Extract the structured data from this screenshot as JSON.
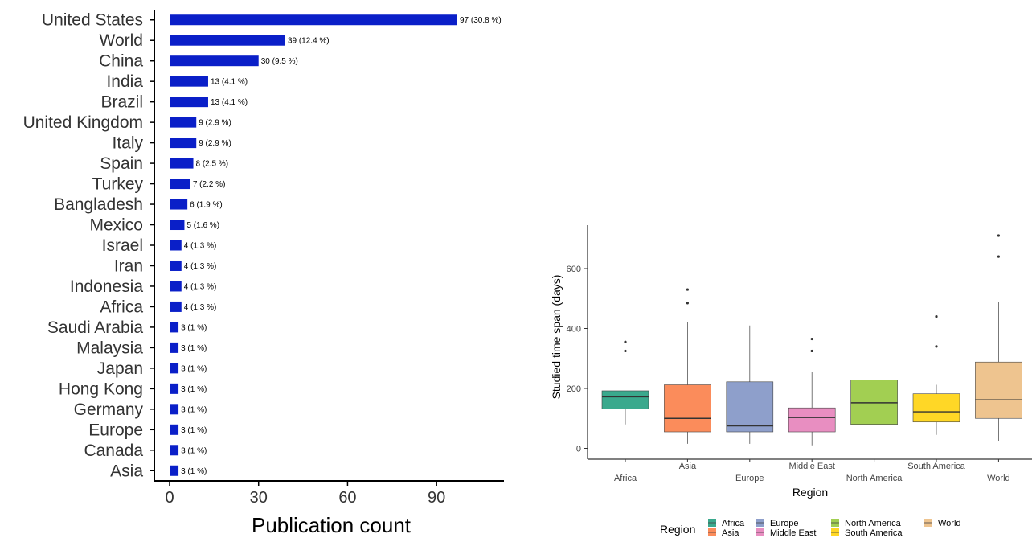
{
  "chart_data": [
    {
      "type": "bar",
      "orientation": "horizontal",
      "categories": [
        "United States",
        "World",
        "China",
        "India",
        "Brazil",
        "United Kingdom",
        "Italy",
        "Spain",
        "Turkey",
        "Bangladesh",
        "Mexico",
        "Israel",
        "Iran",
        "Indonesia",
        "Africa",
        "Saudi Arabia",
        "Malaysia",
        "Japan",
        "Hong Kong",
        "Germany",
        "Europe",
        "Canada",
        "Asia"
      ],
      "values": [
        97,
        39,
        30,
        13,
        13,
        9,
        9,
        8,
        7,
        6,
        5,
        4,
        4,
        4,
        4,
        3,
        3,
        3,
        3,
        3,
        3,
        3,
        3
      ],
      "data_labels": [
        "97 (30.8 %)",
        "39 (12.4 %)",
        "30 (9.5 %)",
        "13 (4.1 %)",
        "13 (4.1 %)",
        "9 (2.9 %)",
        "9 (2.9 %)",
        "8 (2.5 %)",
        "7 (2.2 %)",
        "6 (1.9 %)",
        "5 (1.6 %)",
        "4 (1.3 %)",
        "4 (1.3 %)",
        "4 (1.3 %)",
        "4 (1.3 %)",
        "3 (1 %)",
        "3 (1 %)",
        "3 (1 %)",
        "3 (1 %)",
        "3 (1 %)",
        "3 (1 %)",
        "3 (1 %)",
        "3 (1 %)"
      ],
      "xlabel": "Publication count",
      "xticks": [
        0,
        30,
        60,
        90
      ],
      "xlim": [
        0,
        113
      ],
      "bar_color": "#0a1fc8",
      "grid": false
    },
    {
      "type": "box",
      "categories": [
        "Africa",
        "Asia",
        "Europe",
        "Middle East",
        "North America",
        "South America",
        "World"
      ],
      "boxes": [
        {
          "name": "Africa",
          "whisker_low": 80,
          "q1": 132,
          "median": 172,
          "q3": 192,
          "whisker_high": 192,
          "outliers": [
            325,
            355
          ],
          "color": "#3aa98d"
        },
        {
          "name": "Asia",
          "whisker_low": 15,
          "q1": 55,
          "median": 100,
          "q3": 212,
          "whisker_high": 422,
          "outliers": [
            485,
            530
          ],
          "color": "#fb8c5b"
        },
        {
          "name": "Europe",
          "whisker_low": 15,
          "q1": 55,
          "median": 75,
          "q3": 222,
          "whisker_high": 410,
          "outliers": [],
          "color": "#8e9fcb"
        },
        {
          "name": "Middle East",
          "whisker_low": 10,
          "q1": 55,
          "median": 103,
          "q3": 135,
          "whisker_high": 255,
          "outliers": [
            325,
            365
          ],
          "color": "#e88ec1"
        },
        {
          "name": "North America",
          "whisker_low": 5,
          "q1": 80,
          "median": 152,
          "q3": 228,
          "whisker_high": 375,
          "outliers": [],
          "color": "#a2cf52"
        },
        {
          "name": "South America",
          "whisker_low": 45,
          "q1": 88,
          "median": 122,
          "q3": 182,
          "whisker_high": 212,
          "outliers": [
            340,
            440
          ],
          "color": "#ffd726"
        },
        {
          "name": "World",
          "whisker_low": 25,
          "q1": 100,
          "median": 162,
          "q3": 288,
          "whisker_high": 490,
          "outliers": [
            640,
            710
          ],
          "color": "#eec48f"
        }
      ],
      "xlabel": "Region",
      "ylabel": "Studied time span (days)",
      "yticks": [
        0,
        200,
        400,
        600
      ],
      "ylim": [
        -30,
        740
      ],
      "legend_title": "Region",
      "legend_position": "bottom",
      "grid": false
    }
  ]
}
